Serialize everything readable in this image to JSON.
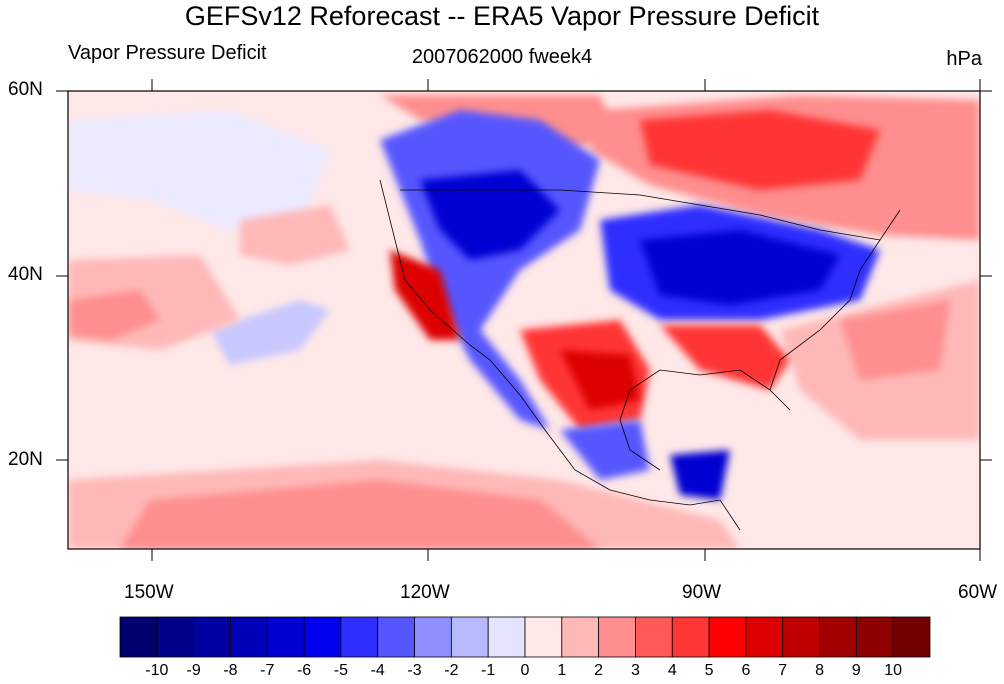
{
  "title": "GEFSv12 Reforecast -- ERA5 Vapor Pressure Deficit",
  "subtitle_left": "Vapor Pressure Deficit",
  "subtitle_center": "2007062000 fweek4",
  "subtitle_right": "hPa",
  "lat_labels": [
    "60N",
    "40N",
    "20N"
  ],
  "lon_labels": [
    "150W",
    "120W",
    "90W",
    "60W"
  ],
  "colorbar": {
    "labels": [
      "-10",
      "-9",
      "-8",
      "-7",
      "-6",
      "-5",
      "-4",
      "-3",
      "-2",
      "-1",
      "0",
      "1",
      "2",
      "3",
      "4",
      "5",
      "6",
      "7",
      "8",
      "9",
      "10"
    ],
    "colors": [
      "#00006e",
      "#000088",
      "#0000a0",
      "#0000b8",
      "#0000d2",
      "#0000ec",
      "#2e2eff",
      "#5656ff",
      "#8e8eff",
      "#b8b8ff",
      "#e4e4ff",
      "#ffe8e8",
      "#ffb8b8",
      "#ff8e8e",
      "#ff5a5a",
      "#ff3636",
      "#ff0000",
      "#dc0000",
      "#be0000",
      "#a00000",
      "#8c0000",
      "#720000"
    ]
  }
}
